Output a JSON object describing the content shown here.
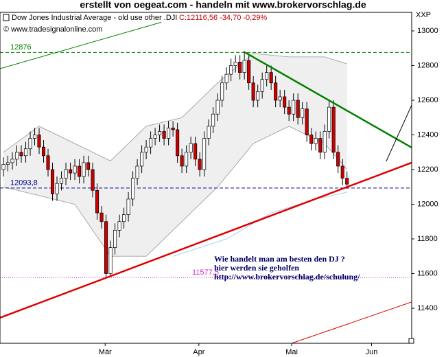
{
  "chart_data": {
    "type": "candlestick",
    "title": "erstellt von oegeat.com  - handeln mit  www.brokervorschlag.de",
    "instrument": "Dow Jones Industrial Average - old use other .DJI",
    "quote": "C:12116,56 -34,70 -0,29%",
    "source": "© www.tradesignalonline.com",
    "axis_name": "XXP",
    "annotations": [
      "Wie handelt man am besten  den DJ ?",
      "hier werden sie geholfen",
      "http://www.brokervorschlag.de/schulung/"
    ],
    "x": [
      0,
      1,
      2,
      3,
      4,
      5,
      6,
      7,
      8,
      9,
      10,
      11,
      12,
      13,
      14,
      15,
      16,
      17,
      18,
      19,
      20,
      21,
      22,
      23,
      24,
      25,
      26,
      27,
      28,
      29,
      30,
      31,
      32,
      33,
      34,
      35,
      36,
      37,
      38,
      39,
      40,
      41,
      42,
      43,
      44,
      45,
      46,
      47,
      48,
      49,
      50,
      51,
      52,
      53,
      54,
      55,
      56,
      57,
      58,
      59,
      60,
      61,
      62,
      63,
      64,
      65,
      66,
      67,
      68,
      69,
      70,
      71,
      72,
      73,
      74,
      75,
      76,
      77
    ],
    "open": [
      12200,
      12230,
      12240,
      12260,
      12300,
      12280,
      12320,
      12380,
      12400,
      12330,
      12280,
      12200,
      12060,
      12120,
      12150,
      12200,
      12180,
      12220,
      12160,
      12240,
      12200,
      12080,
      11950,
      11900,
      11600,
      11750,
      11850,
      11900,
      11940,
      12030,
      12150,
      12220,
      12300,
      12330,
      12380,
      12400,
      12420,
      12380,
      12440,
      12430,
      12280,
      12220,
      12300,
      12350,
      12260,
      12200,
      12380,
      12450,
      12520,
      12600,
      12700,
      12750,
      12800,
      12820,
      12760,
      12830,
      12700,
      12600,
      12650,
      12720,
      12760,
      12700,
      12600,
      12620,
      12560,
      12520,
      12600,
      12500,
      12550,
      12400,
      12350,
      12380,
      12300,
      12420,
      12560,
      12300,
      12220,
      12150
    ],
    "high": [
      12270,
      12280,
      12300,
      12340,
      12340,
      12360,
      12420,
      12440,
      12440,
      12370,
      12320,
      12240,
      12160,
      12190,
      12240,
      12240,
      12260,
      12260,
      12280,
      12280,
      12240,
      12120,
      11990,
      11940,
      11790,
      11890,
      11940,
      11980,
      12070,
      12190,
      12260,
      12340,
      12370,
      12420,
      12440,
      12460,
      12460,
      12480,
      12480,
      12470,
      12320,
      12340,
      12390,
      12390,
      12300,
      12420,
      12490,
      12560,
      12640,
      12740,
      12790,
      12840,
      12860,
      12860,
      12876,
      12870,
      12740,
      12690,
      12760,
      12800,
      12800,
      12740,
      12660,
      12660,
      12600,
      12640,
      12640,
      12590,
      12590,
      12440,
      12420,
      12420,
      12460,
      12600,
      12600,
      12340,
      12260,
      12190
    ],
    "low": [
      12160,
      12190,
      12200,
      12220,
      12240,
      12240,
      12280,
      12340,
      12290,
      12240,
      12160,
      12020,
      12020,
      12080,
      12110,
      12140,
      12140,
      12120,
      12120,
      12160,
      12040,
      11910,
      11860,
      11577,
      11590,
      11710,
      11810,
      11860,
      11900,
      11990,
      12110,
      12180,
      12260,
      12290,
      12340,
      12360,
      12340,
      12340,
      12390,
      12240,
      12180,
      12180,
      12260,
      12220,
      12160,
      12160,
      12340,
      12410,
      12480,
      12560,
      12660,
      12710,
      12760,
      12720,
      12720,
      12660,
      12560,
      12560,
      12610,
      12680,
      12660,
      12560,
      12560,
      12520,
      12480,
      12480,
      12460,
      12460,
      12360,
      12310,
      12310,
      12260,
      12260,
      12380,
      12260,
      12180,
      12110,
      12090
    ],
    "close": [
      12230,
      12240,
      12260,
      12300,
      12280,
      12320,
      12380,
      12400,
      12330,
      12280,
      12200,
      12060,
      12120,
      12150,
      12200,
      12180,
      12220,
      12160,
      12240,
      12200,
      12080,
      11950,
      11900,
      11600,
      11750,
      11850,
      11900,
      11940,
      12030,
      12150,
      12220,
      12300,
      12330,
      12380,
      12400,
      12420,
      12380,
      12440,
      12430,
      12280,
      12220,
      12300,
      12350,
      12260,
      12200,
      12380,
      12450,
      12520,
      12600,
      12700,
      12750,
      12800,
      12820,
      12760,
      12830,
      12700,
      12600,
      12650,
      12720,
      12760,
      12700,
      12600,
      12620,
      12560,
      12520,
      12600,
      12500,
      12550,
      12400,
      12350,
      12380,
      12300,
      12420,
      12560,
      12300,
      12220,
      12150,
      12116
    ],
    "up_color": "#ffffff",
    "down_color": "#cc0000",
    "bands": {
      "x": [
        0,
        8,
        16,
        24,
        32,
        40,
        48,
        56,
        64,
        72,
        77
      ],
      "upper": [
        12300,
        12450,
        12350,
        12250,
        12450,
        12500,
        12700,
        12870,
        12850,
        12850,
        12810
      ],
      "lower": [
        12100,
        12050,
        12000,
        11700,
        11700,
        11900,
        12100,
        12350,
        12450,
        12350,
        12200
      ],
      "color": "#aaaaaa",
      "fill": "#efefef"
    },
    "moving_average": {
      "x": [
        38,
        50,
        60,
        70,
        77
      ],
      "values": [
        11700,
        11800,
        11950,
        12030,
        12070
      ],
      "color": "#a8cdf0"
    },
    "lines": [
      {
        "x": [
          -0.77,
          35.4
        ],
        "y": [
          12782,
          13050
        ],
        "color": "#008000",
        "width": 1
      },
      {
        "x": [
          -0.77,
          91.5
        ],
        "y": [
          11345,
          12240
        ],
        "color": "#e00000",
        "width": 2.5
      },
      {
        "x": [
          53.8,
          91.5
        ],
        "y": [
          12881,
          12327
        ],
        "color": "#008000",
        "width": 2.5
      },
      {
        "x": [
          64.6,
          91.5
        ],
        "y": [
          11198,
          11436
        ],
        "color": "#e00000",
        "width": 1
      },
      {
        "x": [
          85.8,
          91.5
        ],
        "y": [
          12248,
          12572
        ],
        "color": "#000000",
        "width": 1
      }
    ],
    "levels": [
      {
        "value": 12876,
        "color": "#008000"
      },
      {
        "value": 12093.8,
        "label": "12093,8",
        "color": "#000099"
      },
      {
        "value": 11577.5,
        "label": "11577,5",
        "color": "#cc33cc"
      }
    ],
    "xlim": [
      -0.77,
      91.5
    ],
    "ylim": [
      11198,
      13107
    ],
    "yticks": [
      11400,
      11600,
      11800,
      12000,
      12200,
      12400,
      12600,
      12800,
      13000
    ],
    "xticks": [
      {
        "value": 22.8,
        "label": "Mär"
      },
      {
        "value": 43.8,
        "label": "Apr"
      },
      {
        "value": 64.6,
        "label": "Mai"
      },
      {
        "value": 82.5,
        "label": "Jun"
      }
    ]
  }
}
